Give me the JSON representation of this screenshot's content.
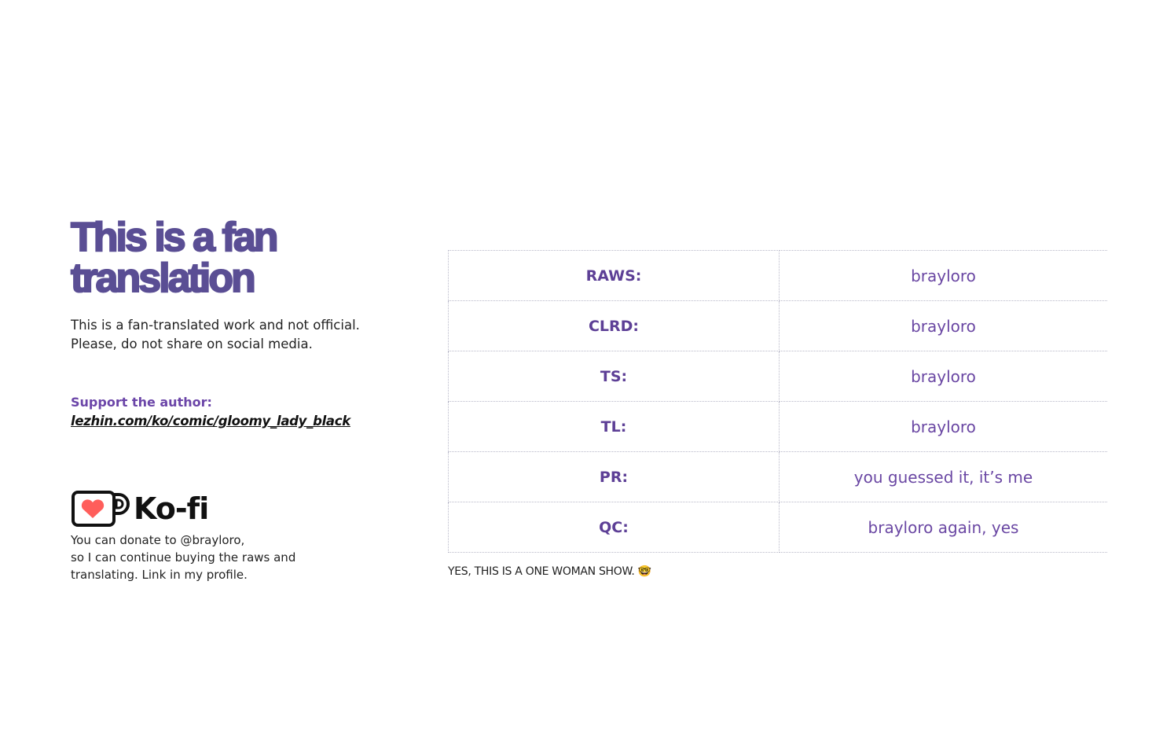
{
  "title_lines": [
    "This is a fan",
    "translation"
  ],
  "body": "This is a fan-translated work and not official. Please, do not share on social media.",
  "support": {
    "label": "Support the author:",
    "link": "lezhin.com/ko/comic/gloomy_lady_black"
  },
  "kofi": {
    "brand": "Ko-fi",
    "lines": [
      "You can donate to @brayloro,",
      "so I can continue buying the raws and",
      "translating. Link in my profile."
    ]
  },
  "credits": [
    {
      "role": "RAWS:",
      "name": "brayloro"
    },
    {
      "role": "CLRD:",
      "name": "brayloro"
    },
    {
      "role": "TS:",
      "name": "brayloro"
    },
    {
      "role": "TL:",
      "name": "brayloro"
    },
    {
      "role": "PR:",
      "name": "you guessed it, it’s me"
    },
    {
      "role": "QC:",
      "name": "brayloro again, yes"
    }
  ],
  "footer": "YES, THIS IS A ONE WOMAN SHOW. 🤓",
  "colors": {
    "title": "#5a4e94",
    "accent": "#6b45a8",
    "heart": "#ff5e5b"
  }
}
